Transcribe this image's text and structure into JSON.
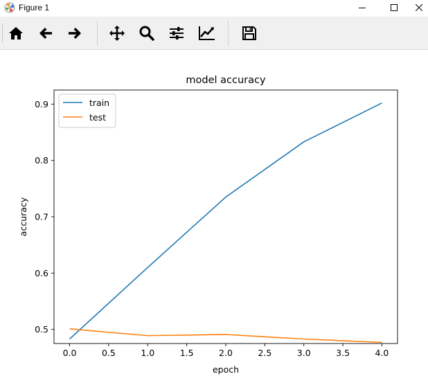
{
  "window": {
    "title": "Figure 1"
  },
  "toolbar": {
    "buttons": [
      "home",
      "back",
      "forward",
      "pan",
      "zoom",
      "configure-subplots",
      "edit-axis",
      "save"
    ]
  },
  "chart_data": {
    "type": "line",
    "title": "model accuracy",
    "xlabel": "epoch",
    "ylabel": "accuracy",
    "xlim": [
      -0.2,
      4.2
    ],
    "ylim": [
      0.475,
      0.925
    ],
    "xticks": [
      "0.0",
      "0.5",
      "1.0",
      "1.5",
      "2.0",
      "2.5",
      "3.0",
      "3.5",
      "4.0"
    ],
    "yticks": [
      "0.5",
      "0.6",
      "0.7",
      "0.8",
      "0.9"
    ],
    "x": [
      0,
      1,
      2,
      3,
      4
    ],
    "series": [
      {
        "name": "train",
        "values": [
          0.483,
          0.61,
          0.735,
          0.833,
          0.902
        ],
        "color": "#1f77b4"
      },
      {
        "name": "test",
        "values": [
          0.501,
          0.489,
          0.491,
          0.483,
          0.477
        ],
        "color": "#ff7f0e"
      }
    ],
    "legend_position": "top-left",
    "grid": false
  }
}
